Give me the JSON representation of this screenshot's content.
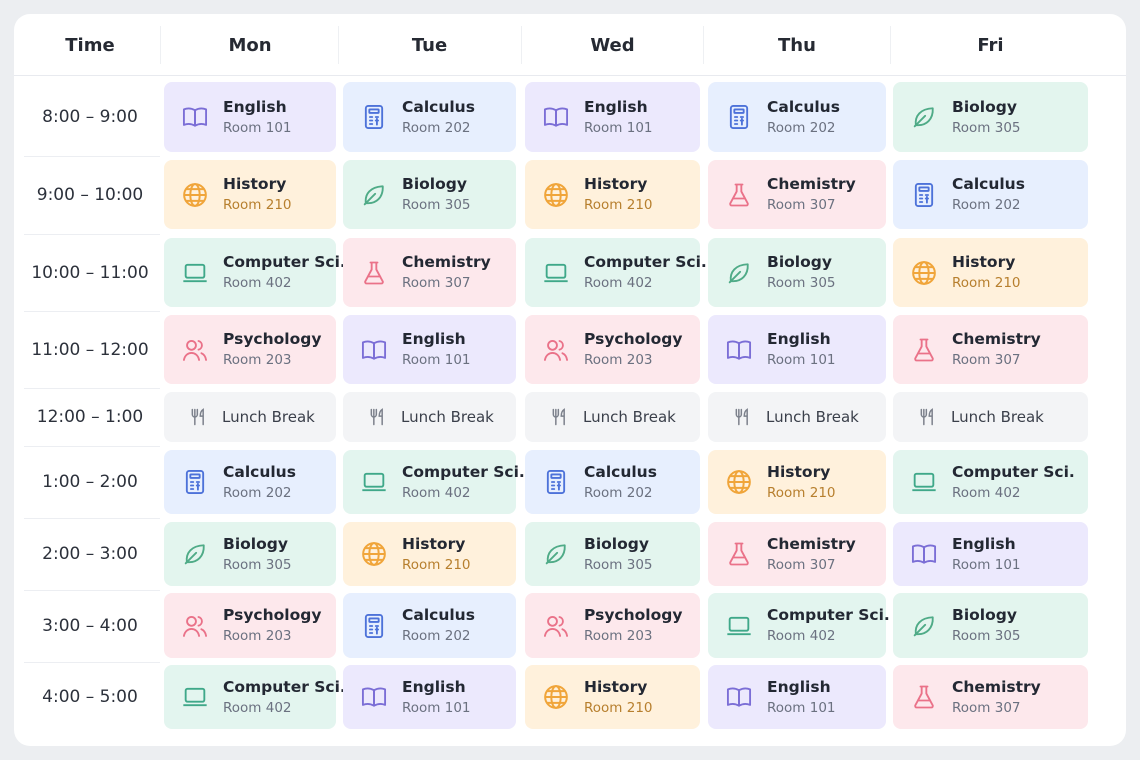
{
  "header": {
    "time_label": "Time",
    "days": [
      "Mon",
      "Tue",
      "Wed",
      "Thu",
      "Fri"
    ]
  },
  "times": [
    "8:00 – 9:00",
    "9:00 – 10:00",
    "10:00 – 11:00",
    "11:00 – 12:00",
    "12:00 – 1:00",
    "1:00 – 2:00",
    "2:00 – 3:00",
    "3:00 – 4:00",
    "4:00 – 5:00"
  ],
  "subjects": {
    "english": {
      "name": "English",
      "room": "Room 101",
      "icon": "book-icon",
      "color": "#7b6ed6",
      "bg": "#ece9fd"
    },
    "calculus": {
      "name": "Calculus",
      "room": "Room 202",
      "icon": "calculator-icon",
      "color": "#4d72d9",
      "bg": "#e7effe"
    },
    "biology": {
      "name": "Biology",
      "room": "Room 305",
      "icon": "leaf-icon",
      "color": "#4fab87",
      "bg": "#e3f5ee"
    },
    "history": {
      "name": "History",
      "room": "Room 210",
      "icon": "globe-icon",
      "color": "#f0a53a",
      "bg": "#fff1dc"
    },
    "chemistry": {
      "name": "Chemistry",
      "room": "Room 307",
      "icon": "flask-icon",
      "color": "#ea7289",
      "bg": "#fde8ec"
    },
    "compsci": {
      "name": "Computer Sci.",
      "room": "Room 402",
      "icon": "laptop-icon",
      "color": "#3fa889",
      "bg": "#e3f5ef"
    },
    "psychology": {
      "name": "Psychology",
      "room": "Room 203",
      "icon": "users-icon",
      "color": "#ea7289",
      "bg": "#fde8ec"
    },
    "lunch": {
      "name": "Lunch Break",
      "room": "",
      "icon": "utensils-icon",
      "color": "#7c818c",
      "bg": "#f3f4f6"
    }
  },
  "schedule": [
    [
      "english",
      "calculus",
      "english",
      "calculus",
      "biology"
    ],
    [
      "history",
      "biology",
      "history",
      "chemistry",
      "calculus"
    ],
    [
      "compsci",
      "chemistry",
      "compsci",
      "biology",
      "history"
    ],
    [
      "psychology",
      "english",
      "psychology",
      "english",
      "chemistry"
    ],
    [
      "lunch",
      "lunch",
      "lunch",
      "lunch",
      "lunch"
    ],
    [
      "calculus",
      "compsci",
      "calculus",
      "history",
      "compsci"
    ],
    [
      "biology",
      "history",
      "biology",
      "chemistry",
      "english"
    ],
    [
      "psychology",
      "calculus",
      "psychology",
      "compsci",
      "biology"
    ],
    [
      "compsci",
      "english",
      "history",
      "english",
      "chemistry"
    ]
  ]
}
